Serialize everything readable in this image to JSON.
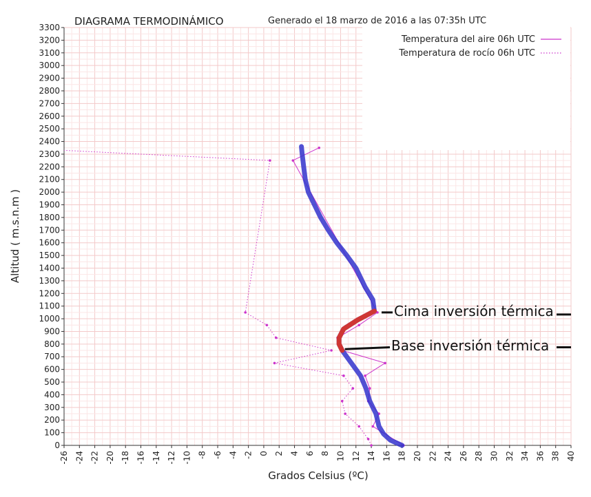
{
  "chart_data": {
    "type": "line",
    "title": "DIAGRAMA TERMODINÁMICO",
    "subtitle": "Generado el 18 marzo de 2016 a las 07:35h UTC",
    "xlabel": "Grados Celsius (ºC)",
    "ylabel": "Altitud ( m.s.n.m )",
    "xlim": [
      -26,
      40
    ],
    "ylim": [
      0,
      3300
    ],
    "x_ticks": [
      -26,
      -24,
      -22,
      -20,
      -18,
      -16,
      -14,
      -12,
      -10,
      -8,
      -6,
      -4,
      -2,
      0,
      2,
      4,
      6,
      8,
      10,
      12,
      14,
      16,
      18,
      20,
      22,
      24,
      26,
      28,
      30,
      32,
      34,
      36,
      38,
      40
    ],
    "y_ticks": [
      0,
      100,
      200,
      300,
      400,
      500,
      600,
      700,
      800,
      900,
      1000,
      1100,
      1200,
      1300,
      1400,
      1500,
      1600,
      1700,
      1800,
      1900,
      2000,
      2100,
      2200,
      2300,
      2400,
      2500,
      2600,
      2700,
      2800,
      2900,
      3000,
      3100,
      3200,
      3300
    ],
    "grid": true,
    "legend_position": "top-right",
    "series": [
      {
        "name": "Temperatura del aire 06h UTC",
        "style": "solid",
        "color": "#cc33cc",
        "points": [
          {
            "x": 18.2,
            "y": 0
          },
          {
            "x": 14.2,
            "y": 150
          },
          {
            "x": 15.0,
            "y": 250
          },
          {
            "x": 13.6,
            "y": 350
          },
          {
            "x": 13.8,
            "y": 450
          },
          {
            "x": 13.2,
            "y": 550
          },
          {
            "x": 15.8,
            "y": 650
          },
          {
            "x": 10.2,
            "y": 750
          },
          {
            "x": 9.6,
            "y": 850
          },
          {
            "x": 12.4,
            "y": 950
          },
          {
            "x": 14.8,
            "y": 1050
          },
          {
            "x": 3.8,
            "y": 2250
          },
          {
            "x": 7.2,
            "y": 2350
          }
        ]
      },
      {
        "name": "Temperatura de rocío 06h UTC",
        "style": "dotted",
        "color": "#cc33cc",
        "points": [
          {
            "x": 14.0,
            "y": 0
          },
          {
            "x": 13.6,
            "y": 50
          },
          {
            "x": 12.4,
            "y": 150
          },
          {
            "x": 10.6,
            "y": 250
          },
          {
            "x": 10.2,
            "y": 350
          },
          {
            "x": 11.6,
            "y": 450
          },
          {
            "x": 10.4,
            "y": 550
          },
          {
            "x": 1.4,
            "y": 650
          },
          {
            "x": 8.8,
            "y": 750
          },
          {
            "x": 1.6,
            "y": 850
          },
          {
            "x": 0.4,
            "y": 950
          },
          {
            "x": -2.4,
            "y": 1050
          },
          {
            "x": 0.8,
            "y": 2250
          },
          {
            "x": -26,
            "y": 2330
          }
        ]
      }
    ],
    "overlay": {
      "trace_color": "#3333cc",
      "inversion_color": "#dd3322",
      "trace": [
        {
          "x": 18.0,
          "y": 0
        },
        {
          "x": 16.5,
          "y": 40
        },
        {
          "x": 15.6,
          "y": 90
        },
        {
          "x": 15.0,
          "y": 150
        },
        {
          "x": 14.6,
          "y": 250
        },
        {
          "x": 13.8,
          "y": 350
        },
        {
          "x": 13.3,
          "y": 450
        },
        {
          "x": 12.6,
          "y": 550
        },
        {
          "x": 11.4,
          "y": 650
        },
        {
          "x": 10.2,
          "y": 750
        },
        {
          "x": 9.8,
          "y": 800
        },
        {
          "x": 9.8,
          "y": 850
        },
        {
          "x": 10.4,
          "y": 920
        },
        {
          "x": 12.2,
          "y": 990
        },
        {
          "x": 14.4,
          "y": 1060
        },
        {
          "x": 14.2,
          "y": 1150
        },
        {
          "x": 13.2,
          "y": 1250
        },
        {
          "x": 12.0,
          "y": 1400
        },
        {
          "x": 10.8,
          "y": 1500
        },
        {
          "x": 9.5,
          "y": 1600
        },
        {
          "x": 8.4,
          "y": 1700
        },
        {
          "x": 7.4,
          "y": 1800
        },
        {
          "x": 6.6,
          "y": 1900
        },
        {
          "x": 5.8,
          "y": 2000
        },
        {
          "x": 5.4,
          "y": 2100
        },
        {
          "x": 5.2,
          "y": 2200
        },
        {
          "x": 5.0,
          "y": 2300
        },
        {
          "x": 4.9,
          "y": 2360
        }
      ],
      "inversion_range": [
        740,
        1065
      ]
    },
    "annotations": [
      {
        "text": "Cima inversión térmica",
        "x": 14.8,
        "y": 1050
      },
      {
        "text": "Base inversión térmica",
        "x": 10.2,
        "y": 760
      }
    ]
  }
}
